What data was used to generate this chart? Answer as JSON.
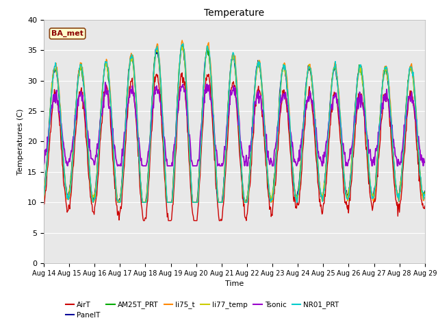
{
  "title": "Temperature",
  "xlabel": "Time",
  "ylabel": "Temperatures (C)",
  "ylim": [
    0,
    40
  ],
  "yticks": [
    0,
    5,
    10,
    15,
    20,
    25,
    30,
    35,
    40
  ],
  "annotation_text": "BA_met",
  "annotation_color": "#8B0000",
  "annotation_bg": "#FFFFCC",
  "annotation_border": "#8B4513",
  "series_order": [
    "AirT",
    "PanelT",
    "AM25T_PRT",
    "li75_t",
    "li77_temp",
    "Tsonic",
    "NR01_PRT"
  ],
  "series_colors": {
    "AirT": "#CC0000",
    "PanelT": "#000099",
    "AM25T_PRT": "#00AA00",
    "li75_t": "#FF8800",
    "li77_temp": "#CCCC00",
    "Tsonic": "#9900CC",
    "NR01_PRT": "#00CCCC"
  },
  "xtick_labels": [
    "Aug 14",
    "Aug 15",
    "Aug 16",
    "Aug 17",
    "Aug 18",
    "Aug 19",
    "Aug 20",
    "Aug 21",
    "Aug 22",
    "Aug 23",
    "Aug 24",
    "Aug 25",
    "Aug 26",
    "Aug 27",
    "Aug 28",
    "Aug 29"
  ],
  "num_points": 720,
  "figsize": [
    6.4,
    4.8
  ],
  "dpi": 100
}
